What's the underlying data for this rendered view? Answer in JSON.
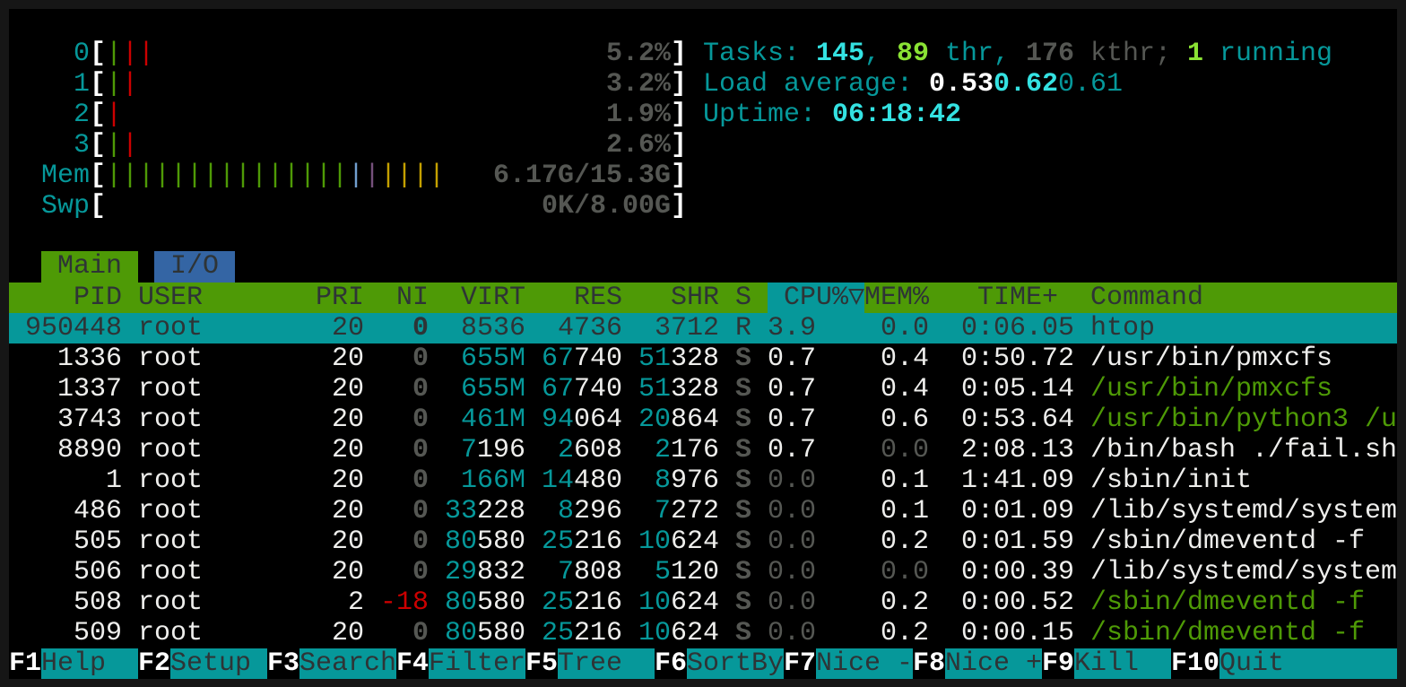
{
  "meters": {
    "cpus": [
      {
        "label": "0",
        "bars": [
          "green",
          "red",
          "red"
        ],
        "value": "5.2%"
      },
      {
        "label": "1",
        "bars": [
          "green",
          "red"
        ],
        "value": "3.2%"
      },
      {
        "label": "2",
        "bars": [
          "red"
        ],
        "value": "1.9%"
      },
      {
        "label": "3",
        "bars": [
          "green",
          "red"
        ],
        "value": "2.6%"
      }
    ],
    "mem": {
      "label": "Mem",
      "bars": [
        "green",
        "green",
        "green",
        "green",
        "green",
        "green",
        "green",
        "green",
        "green",
        "green",
        "green",
        "green",
        "green",
        "green",
        "green",
        "blue",
        "purple",
        "yellow",
        "yellow",
        "yellow",
        "yellow"
      ],
      "value": "6.17G/15.3G"
    },
    "swp": {
      "label": "Swp",
      "bars": [],
      "value": "0K/8.00G"
    },
    "bar_colors": {
      "green": "#4e9a06",
      "red": "#cc0000",
      "blue": "#729fcf",
      "purple": "#75507b",
      "yellow": "#c4a000"
    }
  },
  "summary": {
    "tasks_label": "Tasks: ",
    "tasks": "145",
    "sep1": ", ",
    "threads": "89",
    "thr_label": " thr, ",
    "kthreads": "176",
    "kthr_label": " kthr; ",
    "running": "1",
    "running_label": " running",
    "load_label": "Load average: ",
    "load1": "0.53",
    "load5": "0.62",
    "load15": "0.61",
    "uptime_label": "Uptime: ",
    "uptime": "06:18:42"
  },
  "tabs": [
    {
      "label": "Main",
      "active": true
    },
    {
      "label": "I/O",
      "active": false
    }
  ],
  "columns": {
    "pid": "PID",
    "user": "USER",
    "pri": "PRI",
    "ni": "NI",
    "virt": "VIRT",
    "res": "RES",
    "shr": "SHR",
    "s": "S",
    "cpu": "CPU%▽",
    "mem": "MEM%",
    "time": "TIME+",
    "command": "Command"
  },
  "processes": [
    {
      "pid": "950448",
      "user": "root",
      "pri": "20",
      "ni": "0",
      "virt": "8536",
      "res": "4736",
      "shr": "3712",
      "s": "R",
      "cpu": "3.9",
      "mem": "0.0",
      "time": "0:06.05",
      "command": "htop",
      "thread": false,
      "selected": true
    },
    {
      "pid": "1336",
      "user": "root",
      "pri": "20",
      "ni": "0",
      "virt": "655M",
      "res": "67740",
      "shr": "51328",
      "s": "S",
      "cpu": "0.7",
      "mem": "0.4",
      "time": "0:50.72",
      "command": "/usr/bin/pmxcfs",
      "thread": false
    },
    {
      "pid": "1337",
      "user": "root",
      "pri": "20",
      "ni": "0",
      "virt": "655M",
      "res": "67740",
      "shr": "51328",
      "s": "S",
      "cpu": "0.7",
      "mem": "0.4",
      "time": "0:05.14",
      "command": "/usr/bin/pmxcfs",
      "thread": true
    },
    {
      "pid": "3743",
      "user": "root",
      "pri": "20",
      "ni": "0",
      "virt": "461M",
      "res": "94064",
      "shr": "20864",
      "s": "S",
      "cpu": "0.7",
      "mem": "0.6",
      "time": "0:53.64",
      "command": "/usr/bin/python3 /u",
      "thread": true
    },
    {
      "pid": "8890",
      "user": "root",
      "pri": "20",
      "ni": "0",
      "virt": "7196",
      "res": "2608",
      "shr": "2176",
      "s": "S",
      "cpu": "0.7",
      "mem": "0.0",
      "time": "2:08.13",
      "command": "/bin/bash ./fail.sh",
      "thread": false
    },
    {
      "pid": "1",
      "user": "root",
      "pri": "20",
      "ni": "0",
      "virt": "166M",
      "res": "14480",
      "shr": "8976",
      "s": "S",
      "cpu": "0.0",
      "mem": "0.1",
      "time": "1:41.09",
      "command": "/sbin/init",
      "thread": false
    },
    {
      "pid": "486",
      "user": "root",
      "pri": "20",
      "ni": "0",
      "virt": "33228",
      "res": "8296",
      "shr": "7272",
      "s": "S",
      "cpu": "0.0",
      "mem": "0.1",
      "time": "0:01.09",
      "command": "/lib/systemd/system",
      "thread": false
    },
    {
      "pid": "505",
      "user": "root",
      "pri": "20",
      "ni": "0",
      "virt": "80580",
      "res": "25216",
      "shr": "10624",
      "s": "S",
      "cpu": "0.0",
      "mem": "0.2",
      "time": "0:01.59",
      "command": "/sbin/dmeventd -f",
      "thread": false
    },
    {
      "pid": "506",
      "user": "root",
      "pri": "20",
      "ni": "0",
      "virt": "29832",
      "res": "7808",
      "shr": "5120",
      "s": "S",
      "cpu": "0.0",
      "mem": "0.0",
      "time": "0:00.39",
      "command": "/lib/systemd/system",
      "thread": false
    },
    {
      "pid": "508",
      "user": "root",
      "pri": "2",
      "ni": "-18",
      "virt": "80580",
      "res": "25216",
      "shr": "10624",
      "s": "S",
      "cpu": "0.0",
      "mem": "0.2",
      "time": "0:00.52",
      "command": "/sbin/dmeventd -f",
      "thread": true
    },
    {
      "pid": "509",
      "user": "root",
      "pri": "20",
      "ni": "0",
      "virt": "80580",
      "res": "25216",
      "shr": "10624",
      "s": "S",
      "cpu": "0.0",
      "mem": "0.2",
      "time": "0:00.15",
      "command": "/sbin/dmeventd -f",
      "thread": true
    }
  ],
  "function_keys": [
    {
      "key": "F1",
      "label": "Help  "
    },
    {
      "key": "F2",
      "label": "Setup "
    },
    {
      "key": "F3",
      "label": "Search"
    },
    {
      "key": "F4",
      "label": "Filter"
    },
    {
      "key": "F5",
      "label": "Tree  "
    },
    {
      "key": "F6",
      "label": "SortBy"
    },
    {
      "key": "F7",
      "label": "Nice -"
    },
    {
      "key": "F8",
      "label": "Nice +"
    },
    {
      "key": "F9",
      "label": "Kill  "
    },
    {
      "key": "F10",
      "label": "Quit"
    }
  ]
}
